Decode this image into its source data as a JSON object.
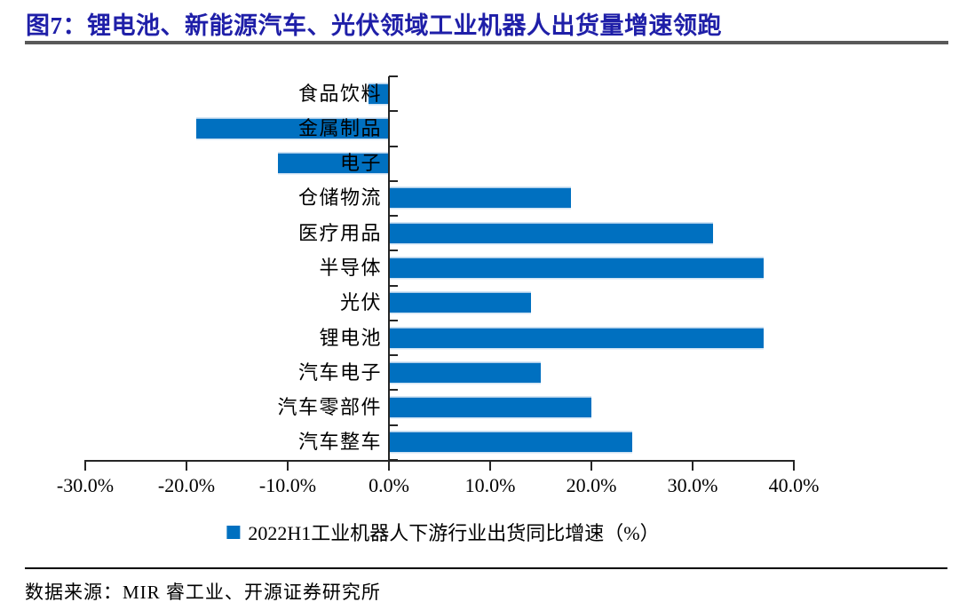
{
  "figure": {
    "title": "图7：锂电池、新能源汽车、光伏领域工业机器人出货量增速领跑",
    "source": "数据来源：MIR 睿工业、开源证券研究所"
  },
  "colors": {
    "bar": "#0070C0",
    "title": "#1F1FA8",
    "title_rule": "#595959",
    "axis": "#262626"
  },
  "chart_data": {
    "type": "bar",
    "orientation": "horizontal",
    "title": "图7：锂电池、新能源汽车、光伏领域工业机器人出货量增速领跑",
    "legend": "2022H1工业机器人下游行业出货同比增速（%）",
    "legend_position": "bottom",
    "grid": false,
    "unit": "%",
    "categories": [
      "食品饮料",
      "金属制品",
      "电子",
      "仓储物流",
      "医疗用品",
      "半导体",
      "光伏",
      "锂电池",
      "汽车电子",
      "汽车零部件",
      "汽车整车"
    ],
    "values": [
      -2,
      -19,
      -11,
      18,
      32,
      37,
      14,
      37,
      15,
      20,
      24
    ],
    "xlim": [
      -30,
      40
    ],
    "x_tick_values": [
      -30,
      -20,
      -10,
      0,
      10,
      20,
      30,
      40
    ],
    "x_ticks": [
      "-30.0%",
      "-20.0%",
      "-10.0%",
      "0.0%",
      "10.0%",
      "20.0%",
      "30.0%",
      "40.0%"
    ]
  }
}
